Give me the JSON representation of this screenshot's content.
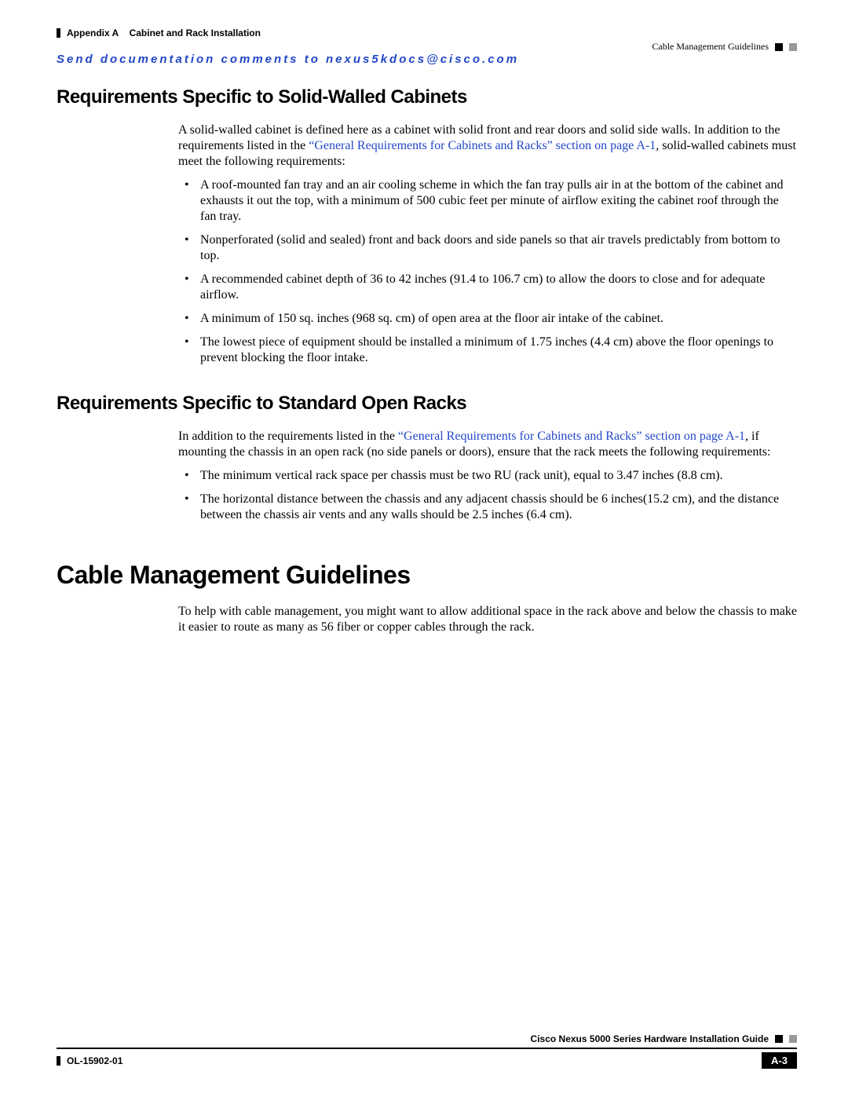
{
  "header": {
    "appendix_label": "Appendix A",
    "appendix_title": "Cabinet and Rack Installation",
    "section_ref": "Cable Management Guidelines"
  },
  "comments_line": "Send documentation comments to nexus5kdocs@cisco.com",
  "section1": {
    "heading": "Requirements Specific to Solid-Walled Cabinets",
    "intro_plain_before": "A solid-walled cabinet is defined here as a cabinet with solid front and rear doors and solid side walls. In addition to the requirements listed in the ",
    "intro_link": "“General Requirements for Cabinets and Racks” section on page A-1",
    "intro_plain_after": ", solid-walled cabinets must meet the following requirements:",
    "bullets": [
      "A roof-mounted fan tray and an air cooling scheme in which the fan tray pulls air in at the bottom of the cabinet and exhausts it out the top, with a minimum of 500 cubic feet per minute of airflow exiting the cabinet roof through the fan tray.",
      "Nonperforated (solid and sealed) front and back doors and side panels so that air travels predictably from bottom to top.",
      "A recommended cabinet depth of 36 to 42 inches (91.4 to 106.7 cm) to allow the doors to close and for adequate airflow.",
      "A minimum of 150 sq. inches (968 sq. cm) of open area at the floor air intake of the cabinet.",
      "The lowest piece of equipment should be installed a minimum of 1.75 inches (4.4 cm) above the floor openings to prevent blocking the floor intake."
    ]
  },
  "section2": {
    "heading": "Requirements Specific to Standard Open Racks",
    "intro_plain_before": "In addition to the requirements listed in the ",
    "intro_link": "“General Requirements for Cabinets and Racks” section on page A-1",
    "intro_plain_after": ", if mounting the chassis in an open rack (no side panels or doors), ensure that the rack meets the following requirements:",
    "bullets": [
      "The minimum vertical rack space per chassis must be two RU (rack unit), equal to 3.47 inches (8.8 cm).",
      "The horizontal distance between the chassis and any adjacent chassis should be 6 inches(15.2 cm), and the distance between the chassis air vents and any walls should be 2.5 inches (6.4 cm)."
    ]
  },
  "section3": {
    "heading": "Cable Management Guidelines",
    "para": "To help with cable management, you might want to allow additional space in the rack above and below the chassis to make it easier to route as many as 56 fiber or copper cables through the rack."
  },
  "footer": {
    "guide_title": "Cisco Nexus 5000 Series Hardware Installation Guide",
    "doc_number": "OL-15902-01",
    "page_number": "A-3"
  }
}
